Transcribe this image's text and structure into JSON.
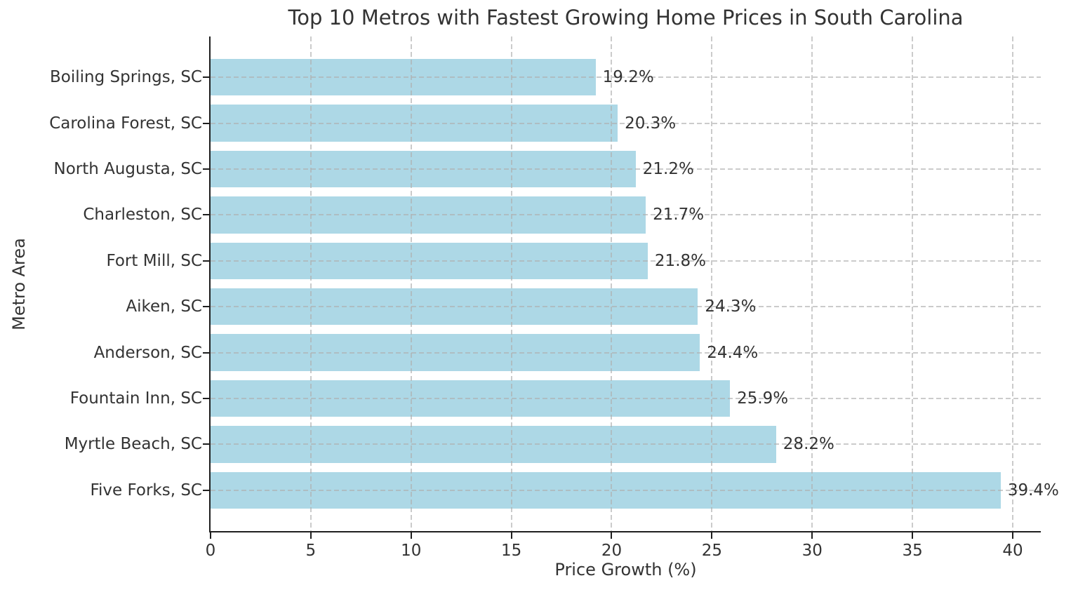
{
  "chart_data": {
    "type": "bar",
    "orientation": "horizontal",
    "title": "Top 10 Metros with Fastest Growing Home Prices in South Carolina",
    "xlabel": "Price Growth (%)",
    "ylabel": "Metro Area",
    "categories": [
      "Boiling Springs, SC",
      "Carolina Forest, SC",
      "North Augusta, SC",
      "Charleston, SC",
      "Fort Mill, SC",
      "Aiken, SC",
      "Anderson, SC",
      "Fountain Inn, SC",
      "Myrtle Beach, SC",
      "Five Forks, SC"
    ],
    "values": [
      19.2,
      20.3,
      21.2,
      21.7,
      21.8,
      24.3,
      24.4,
      25.9,
      28.2,
      39.4
    ],
    "value_labels": [
      "19.2%",
      "20.3%",
      "21.2%",
      "21.7%",
      "21.8%",
      "24.3%",
      "24.4%",
      "25.9%",
      "28.2%",
      "39.4%"
    ],
    "x_ticks": [
      0,
      5,
      10,
      15,
      20,
      25,
      30,
      35,
      40
    ],
    "xlim": [
      0,
      41.4
    ],
    "bar_color": "#add8e6",
    "bar_height_fraction": 0.8,
    "grid": {
      "style": "dashed",
      "color": "#b0b0b0",
      "axes": "both",
      "drawn_above_bars": true
    },
    "spine_color": "#1f1f1f",
    "legend": null
  }
}
